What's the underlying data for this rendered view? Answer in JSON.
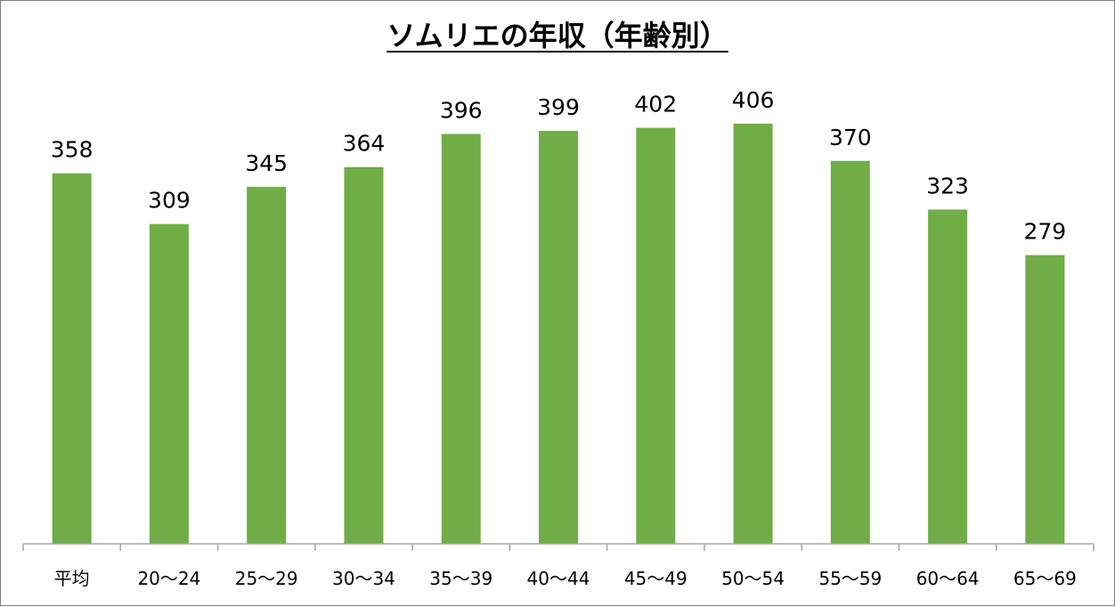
{
  "chart_data": {
    "type": "bar",
    "title": "ソムリエの年収（年齢別）",
    "categories": [
      "平均",
      "20〜24",
      "25〜29",
      "30〜34",
      "35〜39",
      "40〜44",
      "45〜49",
      "50〜54",
      "55〜59",
      "60〜64",
      "65〜69"
    ],
    "values": [
      358,
      309,
      345,
      364,
      396,
      399,
      402,
      406,
      370,
      323,
      279
    ],
    "ylim": [
      0,
      430
    ],
    "xlabel": "",
    "ylabel": "",
    "grid": false,
    "legend": "none",
    "bar_color": "#70ad47",
    "axis_color": "#a6a6a6"
  }
}
